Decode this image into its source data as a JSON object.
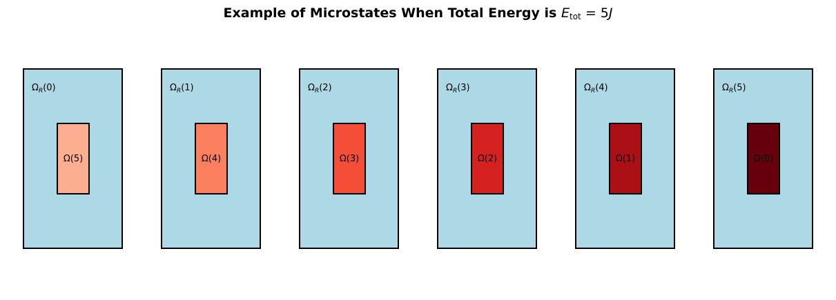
{
  "title": {
    "text": "Example of Microstates When Total Energy is",
    "energy_symbol": "E",
    "energy_subscript": "tot",
    "energy_value": "= 5",
    "energy_unit": "J"
  },
  "colors": {
    "reservoir_fill": "#add8e6",
    "border": "#000000"
  },
  "panels": [
    {
      "outer_symbol": "Ω",
      "outer_subscript": "R",
      "outer_arg": "(0)",
      "inner_text": "Ω(5)",
      "inner_color": "#fcae91"
    },
    {
      "outer_symbol": "Ω",
      "outer_subscript": "R",
      "outer_arg": "(1)",
      "inner_text": "Ω(4)",
      "inner_color": "#fc7f5f"
    },
    {
      "outer_symbol": "Ω",
      "outer_subscript": "R",
      "outer_arg": "(2)",
      "inner_text": "Ω(3)",
      "inner_color": "#f44d38"
    },
    {
      "outer_symbol": "Ω",
      "outer_subscript": "R",
      "outer_arg": "(3)",
      "inner_text": "Ω(2)",
      "inner_color": "#d52221"
    },
    {
      "outer_symbol": "Ω",
      "outer_subscript": "R",
      "outer_arg": "(4)",
      "inner_text": "Ω(1)",
      "inner_color": "#aa1016"
    },
    {
      "outer_symbol": "Ω",
      "outer_subscript": "R",
      "outer_arg": "(5)",
      "inner_text": "Ω(0)",
      "inner_color": "#67000d"
    }
  ]
}
